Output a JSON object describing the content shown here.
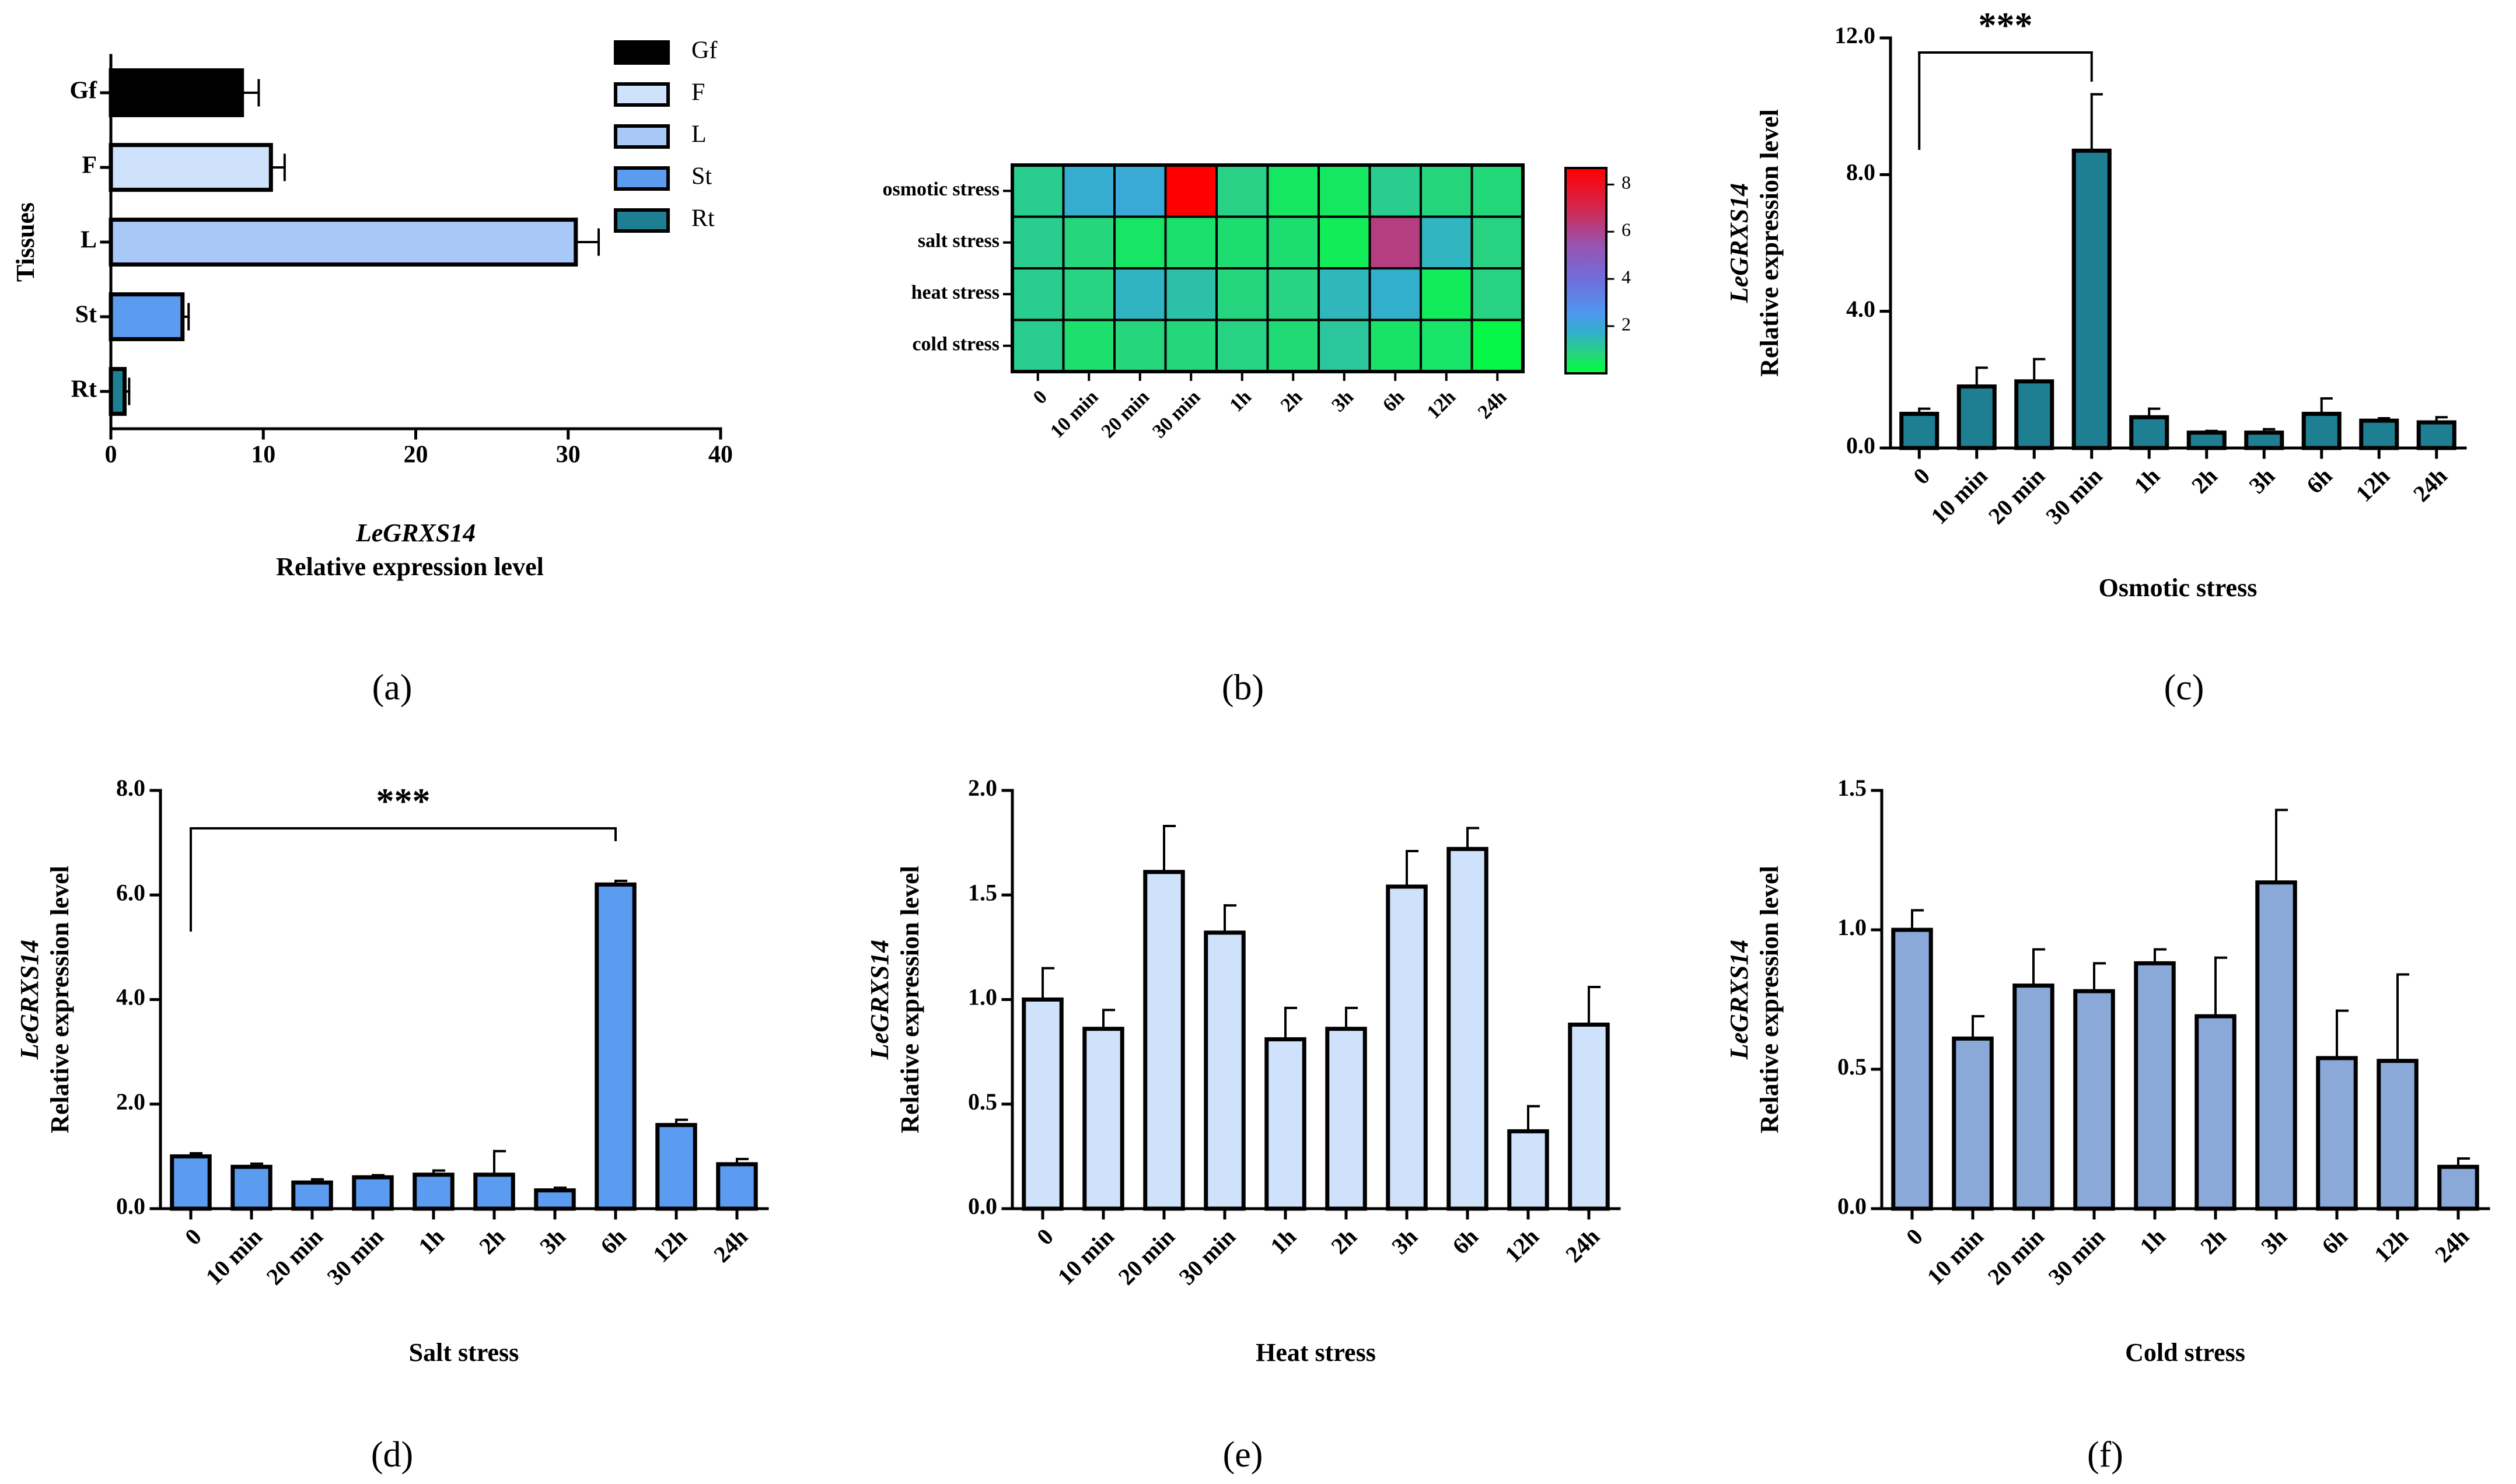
{
  "chart_data": [
    {
      "panel": "a",
      "type": "bar",
      "orientation": "horizontal",
      "categories": [
        "Gf",
        "F",
        "L",
        "St",
        "Rt"
      ],
      "values": [
        8.6,
        10.5,
        30.5,
        4.7,
        0.9
      ],
      "errors": [
        1.1,
        0.9,
        1.5,
        0.4,
        0.3
      ],
      "colors": [
        "#000000",
        "#cfe2fb",
        "#a8c8f7",
        "#5b9cf0",
        "#1d7f91"
      ],
      "xlim": [
        0,
        40
      ],
      "xticks": [
        "0",
        "10",
        "20",
        "30",
        "40"
      ],
      "ylabel": "Tissues",
      "xlabel_gene": "LeGRXS14",
      "xlabel": "Relative expression level",
      "legend": [
        "Gf",
        "F",
        "L",
        "St",
        "Rt"
      ],
      "legend_position": "right",
      "caption": "(a)"
    },
    {
      "panel": "b",
      "type": "heatmap",
      "rows": [
        "osmotic stress",
        "salt stress",
        "heat stress",
        "cold stress"
      ],
      "columns": [
        "0",
        "10 min",
        "20 min",
        "30 min",
        "1h",
        "2h",
        "3h",
        "6h",
        "12h",
        "24h"
      ],
      "values": [
        [
          1.0,
          1.8,
          1.95,
          8.7,
          0.9,
          0.45,
          0.45,
          1.0,
          0.8,
          0.75
        ],
        [
          1.0,
          0.8,
          0.5,
          0.6,
          0.65,
          0.65,
          0.35,
          6.2,
          1.6,
          0.85
        ],
        [
          1.0,
          0.86,
          1.61,
          1.32,
          0.81,
          0.86,
          1.54,
          1.72,
          0.37,
          0.88
        ],
        [
          1.0,
          0.61,
          0.8,
          0.78,
          0.88,
          0.69,
          1.17,
          0.54,
          0.53,
          0.15
        ]
      ],
      "scale_ticks": [
        "2",
        "4",
        "6",
        "8"
      ],
      "scale_range": [
        0,
        8.7
      ],
      "caption": "(b)"
    },
    {
      "panel": "c",
      "type": "bar",
      "categories": [
        "0",
        "10 min",
        "20 min",
        "30 min",
        "1h",
        "2h",
        "3h",
        "6h",
        "12h",
        "24h"
      ],
      "values": [
        1.0,
        1.8,
        1.95,
        8.7,
        0.9,
        0.45,
        0.45,
        1.0,
        0.8,
        0.75
      ],
      "errors": [
        0.15,
        0.55,
        0.65,
        1.65,
        0.25,
        0.05,
        0.1,
        0.45,
        0.07,
        0.15
      ],
      "color": "#1d7f91",
      "ylim": [
        0,
        12
      ],
      "yticks": [
        "0.0",
        "4.0",
        "8.0",
        "12.0"
      ],
      "ylabel_gene": "LeGRXS14",
      "ylabel": "Relative expression level",
      "xlabel": "Osmotic stress",
      "significance": "***",
      "bracket": [
        0,
        3
      ],
      "caption": "(c)"
    },
    {
      "panel": "d",
      "type": "bar",
      "categories": [
        "0",
        "10 min",
        "20 min",
        "30 min",
        "1h",
        "2h",
        "3h",
        "6h",
        "12h",
        "24h"
      ],
      "values": [
        1.0,
        0.8,
        0.5,
        0.6,
        0.65,
        0.65,
        0.35,
        6.2,
        1.6,
        0.85
      ],
      "errors": [
        0.06,
        0.06,
        0.06,
        0.04,
        0.08,
        0.45,
        0.05,
        0.07,
        0.1,
        0.1
      ],
      "color": "#5b9cf0",
      "ylim": [
        0,
        8
      ],
      "yticks": [
        "0.0",
        "2.0",
        "4.0",
        "6.0",
        "8.0"
      ],
      "ylabel_gene": "LeGRXS14",
      "ylabel": "Relative expression level",
      "xlabel": "Salt stress",
      "significance": "***",
      "bracket": [
        0,
        7
      ],
      "caption": "(d)"
    },
    {
      "panel": "e",
      "type": "bar",
      "categories": [
        "0",
        "10 min",
        "20 min",
        "30 min",
        "1h",
        "2h",
        "3h",
        "6h",
        "12h",
        "24h"
      ],
      "values": [
        1.0,
        0.86,
        1.61,
        1.32,
        0.81,
        0.86,
        1.54,
        1.72,
        0.37,
        0.88
      ],
      "errors": [
        0.15,
        0.09,
        0.22,
        0.13,
        0.15,
        0.1,
        0.17,
        0.1,
        0.12,
        0.18
      ],
      "color": "#cfe2fb",
      "ylim": [
        0,
        2
      ],
      "yticks": [
        "0.0",
        "0.5",
        "1.0",
        "1.5",
        "2.0"
      ],
      "ylabel_gene": "LeGRXS14",
      "ylabel": "Relative expression level",
      "xlabel": "Heat stress",
      "caption": "(e)"
    },
    {
      "panel": "f",
      "type": "bar",
      "categories": [
        "0",
        "10 min",
        "20 min",
        "30 min",
        "1h",
        "2h",
        "3h",
        "6h",
        "12h",
        "24h"
      ],
      "values": [
        1.0,
        0.61,
        0.8,
        0.78,
        0.88,
        0.69,
        1.17,
        0.54,
        0.53,
        0.15
      ],
      "errors": [
        0.07,
        0.08,
        0.13,
        0.1,
        0.05,
        0.21,
        0.26,
        0.17,
        0.31,
        0.03
      ],
      "color": "#8aa9d8",
      "ylim": [
        0,
        1.5
      ],
      "yticks": [
        "0.0",
        "0.5",
        "1.0",
        "1.5"
      ],
      "ylabel_gene": "LeGRXS14",
      "ylabel": "Relative expression level",
      "xlabel": "Cold stress",
      "caption": "(f)"
    }
  ]
}
